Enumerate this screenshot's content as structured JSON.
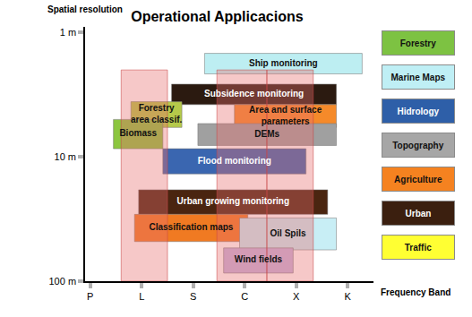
{
  "chart_data": {
    "type": "range",
    "title": "Operational Applicacions",
    "y_label": "Spatial resolution",
    "x_label": "Frequency Band",
    "categories": [
      "P",
      "L",
      "S",
      "C",
      "X",
      "K"
    ],
    "xlim": [
      -0.1,
      5.5
    ],
    "ylim": [
      100,
      0.9
    ],
    "yticks": [
      {
        "value": 1,
        "label": "1 m"
      },
      {
        "value": 10,
        "label": "10 m"
      },
      {
        "value": 100,
        "label": "100 m"
      }
    ],
    "log": "y",
    "grid": false,
    "bands": [
      {
        "x": [
          0.6,
          1.5
        ],
        "y": [
          2,
          100
        ],
        "color": "rgba(232,110,110,0.38)"
      },
      {
        "x": [
          2.46,
          3.43
        ],
        "y": [
          2,
          100
        ],
        "color": "rgba(232,110,110,0.38)"
      },
      {
        "x": [
          3.43,
          4.33
        ],
        "y": [
          2,
          100
        ],
        "color": "rgba(232,110,110,0.38)"
      }
    ],
    "series": [
      {
        "name": "Ship monitoring",
        "color": "#bdeef2",
        "x": [
          2.22,
          5.28
        ],
        "y": [
          1.47,
          2.15
        ]
      },
      {
        "name": "Subsidence monitoring",
        "color": "#2b1a10",
        "x": [
          1.58,
          4.78
        ],
        "y": [
          2.6,
          3.8
        ]
      },
      {
        "name": "Forestry area classif.",
        "color": "#b5c94a",
        "x": [
          0.79,
          1.78
        ],
        "y": [
          3.6,
          5.8
        ]
      },
      {
        "name": "Area and surface parameters",
        "color": "#f58a2a",
        "x": [
          2.8,
          4.78
        ],
        "y": [
          3.8,
          5.8
        ]
      },
      {
        "name": "Biomass",
        "color": "#8cc63f",
        "x": [
          0.45,
          1.41
        ],
        "y": [
          5,
          8.6
        ]
      },
      {
        "name": "DEMs",
        "color": "#a0a0a0",
        "x": [
          2.09,
          4.78
        ],
        "y": [
          5.4,
          8.1
        ]
      },
      {
        "name": "Flood monitoring",
        "color": "#3a66b0",
        "x": [
          1.41,
          4.19
        ],
        "y": [
          8.6,
          13.7
        ]
      },
      {
        "name": "Urban growing monitoring",
        "color": "#4a2510",
        "x": [
          0.94,
          4.61
        ],
        "y": [
          18.4,
          29
        ]
      },
      {
        "name": "Classification maps",
        "color": "#f07a22",
        "x": [
          0.86,
          3.06
        ],
        "y": [
          29,
          48
        ]
      },
      {
        "name": "Oil Spils",
        "color": "#c8eef5",
        "x": [
          2.9,
          4.78
        ],
        "y": [
          31,
          56
        ]
      },
      {
        "name": "Wind fields",
        "color": "#c7b6e0",
        "x": [
          2.59,
          3.94
        ],
        "y": [
          54,
          86
        ]
      }
    ],
    "legend_items": [
      {
        "name": "Forestry",
        "color": "#7dc242"
      },
      {
        "name": "Marine Maps",
        "color": "#bfeff5"
      },
      {
        "name": "Hidrology",
        "color": "#2e5fa8"
      },
      {
        "name": "Topography",
        "color": "#a6a6a6"
      },
      {
        "name": "Agriculture",
        "color": "#f58220"
      },
      {
        "name": "Urban",
        "color": "#3b1f0f"
      },
      {
        "name": "Traffic",
        "color": "#ffff33"
      }
    ]
  }
}
